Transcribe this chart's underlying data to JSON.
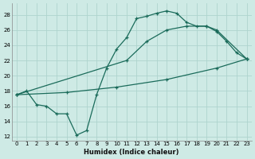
{
  "xlabel": "Humidex (Indice chaleur)",
  "xlim": [
    -0.5,
    23.5
  ],
  "ylim": [
    11.5,
    29.5
  ],
  "xticks": [
    0,
    1,
    2,
    3,
    4,
    5,
    6,
    7,
    8,
    9,
    10,
    11,
    12,
    13,
    14,
    15,
    16,
    17,
    18,
    19,
    20,
    21,
    22,
    23
  ],
  "yticks": [
    12,
    14,
    16,
    18,
    20,
    22,
    24,
    26,
    28
  ],
  "bg_color": "#ceeae5",
  "grid_color": "#aed4ce",
  "line_color": "#1a6b5a",
  "curve_x": [
    0,
    1,
    2,
    3,
    4,
    5,
    6,
    7,
    8,
    9,
    10,
    11,
    12,
    13,
    14,
    15,
    16,
    17,
    18,
    19,
    20,
    21,
    22,
    23
  ],
  "curve_y": [
    17.5,
    18.0,
    16.2,
    16.0,
    15.0,
    15.0,
    12.2,
    12.8,
    17.5,
    21.0,
    23.5,
    25.0,
    27.5,
    27.8,
    28.2,
    28.5,
    28.2,
    27.0,
    26.5,
    26.5,
    25.8,
    24.5,
    23.0,
    22.2
  ],
  "upper_x": [
    0,
    11,
    13,
    15,
    17,
    19,
    20,
    23
  ],
  "upper_y": [
    17.5,
    22.0,
    24.5,
    26.0,
    26.5,
    26.5,
    26.0,
    22.2
  ],
  "lower_x": [
    0,
    5,
    10,
    15,
    20,
    23
  ],
  "lower_y": [
    17.5,
    17.8,
    18.5,
    19.5,
    21.0,
    22.2
  ]
}
